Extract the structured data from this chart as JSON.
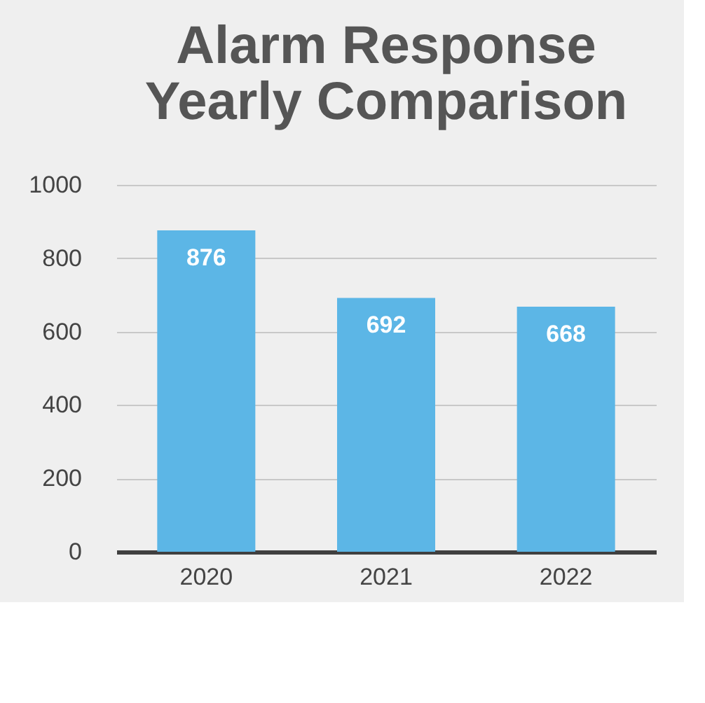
{
  "chart_data": {
    "type": "bar",
    "title": [
      "Alarm Response",
      "Yearly Comparison"
    ],
    "categories": [
      "2020",
      "2021",
      "2022"
    ],
    "values": [
      876,
      692,
      668
    ],
    "color": "#5cb6e6",
    "ylim": [
      0,
      1000
    ],
    "yticks": [
      0,
      200,
      400,
      600,
      800,
      1000
    ],
    "grid": "y",
    "data_labels": true
  }
}
